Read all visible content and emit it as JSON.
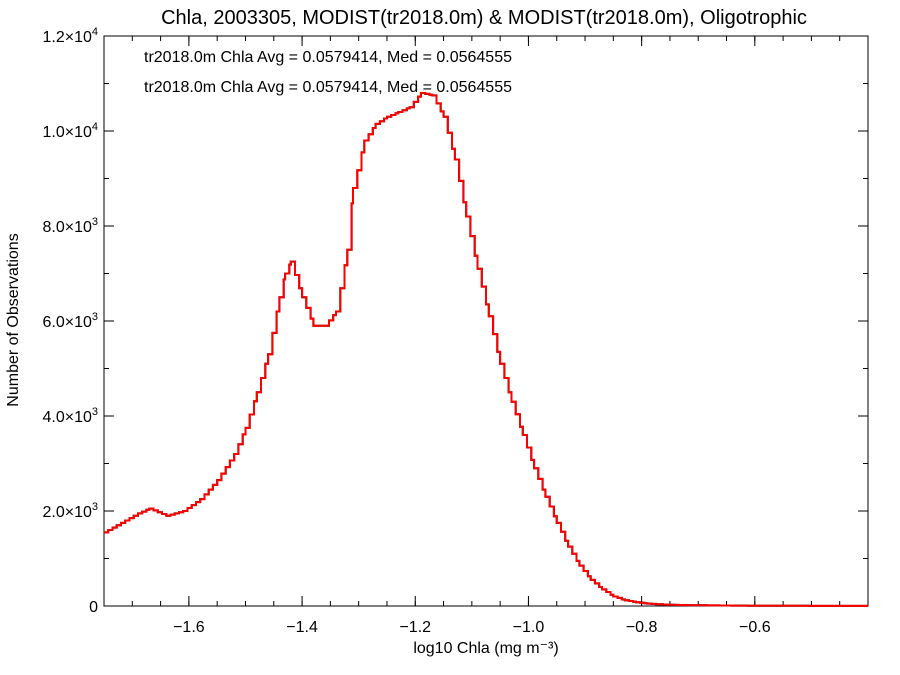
{
  "chart_data": {
    "type": "line",
    "title": "Chla, 2003305, MODIST(tr2018.0m) & MODIST(tr2018.0m), Oligotrophic",
    "xlabel": "log10 Chla (mg m⁻³)",
    "ylabel": "Number of Observations",
    "xlim": [
      -1.75,
      -0.4
    ],
    "ylim": [
      0,
      12000
    ],
    "x_ticks": [
      {
        "value": -1.6,
        "label": "−1.6"
      },
      {
        "value": -1.4,
        "label": "−1.4"
      },
      {
        "value": -1.2,
        "label": "−1.2"
      },
      {
        "value": -1.0,
        "label": "−1.0"
      },
      {
        "value": -0.8,
        "label": "−0.8"
      },
      {
        "value": -0.6,
        "label": "−0.6"
      }
    ],
    "y_ticks": [
      {
        "value": 0,
        "mantissa": "0",
        "exp": ""
      },
      {
        "value": 2000,
        "mantissa": "2.0×10",
        "exp": "3"
      },
      {
        "value": 4000,
        "mantissa": "4.0×10",
        "exp": "3"
      },
      {
        "value": 6000,
        "mantissa": "6.0×10",
        "exp": "3"
      },
      {
        "value": 8000,
        "mantissa": "8.0×10",
        "exp": "3"
      },
      {
        "value": 10000,
        "mantissa": "1.0×10",
        "exp": "4"
      },
      {
        "value": 12000,
        "mantissa": "1.2×10",
        "exp": "4"
      }
    ],
    "annotations": [
      {
        "text": "tr2018.0m Chla Avg = 0.0579414, Med = 0.0564555",
        "color": "#000000"
      },
      {
        "text": "tr2018.0m Chla Avg = 0.0579414, Med = 0.0564555",
        "color": "#ff0000"
      }
    ],
    "series": [
      {
        "color": "#ff0000",
        "x": [
          -1.75,
          -1.72,
          -1.69,
          -1.67,
          -1.64,
          -1.61,
          -1.58,
          -1.55,
          -1.52,
          -1.5,
          -1.48,
          -1.46,
          -1.44,
          -1.43,
          -1.42,
          -1.4,
          -1.38,
          -1.36,
          -1.34,
          -1.32,
          -1.31,
          -1.29,
          -1.27,
          -1.25,
          -1.23,
          -1.21,
          -1.19,
          -1.17,
          -1.15,
          -1.13,
          -1.11,
          -1.09,
          -1.07,
          -1.05,
          -1.03,
          -1.01,
          -0.99,
          -0.97,
          -0.95,
          -0.93,
          -0.91,
          -0.89,
          -0.87,
          -0.85,
          -0.83,
          -0.81,
          -0.79,
          -0.77,
          -0.75,
          -0.7,
          -0.65,
          -0.6,
          -0.55,
          -0.5,
          -0.45,
          -0.4
        ],
        "values": [
          1550,
          1750,
          1950,
          2050,
          1900,
          2000,
          2250,
          2650,
          3200,
          3750,
          4500,
          5300,
          6500,
          7000,
          7250,
          6500,
          5900,
          5900,
          6200,
          7500,
          8800,
          9800,
          10150,
          10300,
          10400,
          10500,
          10800,
          10750,
          10300,
          9400,
          8200,
          7100,
          6100,
          5100,
          4300,
          3600,
          2900,
          2300,
          1750,
          1250,
          850,
          550,
          350,
          200,
          120,
          80,
          50,
          35,
          25,
          15,
          10,
          6,
          4,
          3,
          2,
          1
        ]
      },
      {
        "color": "#000000",
        "x": [
          -1.75,
          -1.72,
          -1.69,
          -1.67,
          -1.64,
          -1.61,
          -1.58,
          -1.55,
          -1.52,
          -1.5,
          -1.48,
          -1.46,
          -1.44,
          -1.43,
          -1.42,
          -1.4,
          -1.38,
          -1.36,
          -1.34,
          -1.32,
          -1.31,
          -1.29,
          -1.27,
          -1.25,
          -1.23,
          -1.21,
          -1.19,
          -1.17,
          -1.15,
          -1.13,
          -1.11,
          -1.09,
          -1.07,
          -1.05,
          -1.03,
          -1.01,
          -0.99,
          -0.97,
          -0.95,
          -0.93,
          -0.91,
          -0.89,
          -0.87,
          -0.85,
          -0.83,
          -0.81,
          -0.79,
          -0.77,
          -0.75,
          -0.7,
          -0.65,
          -0.6,
          -0.55,
          -0.5,
          -0.45,
          -0.4
        ],
        "values": [
          1550,
          1750,
          1950,
          2050,
          1900,
          2000,
          2250,
          2650,
          3200,
          3750,
          4500,
          5300,
          6500,
          7000,
          7250,
          6500,
          5900,
          5900,
          6200,
          7500,
          8800,
          9800,
          10150,
          10300,
          10400,
          10500,
          10800,
          10750,
          10300,
          9400,
          8200,
          7100,
          6100,
          5100,
          4300,
          3600,
          2900,
          2300,
          1750,
          1250,
          850,
          550,
          350,
          200,
          120,
          80,
          50,
          35,
          25,
          15,
          10,
          6,
          4,
          3,
          2,
          1
        ]
      }
    ]
  }
}
